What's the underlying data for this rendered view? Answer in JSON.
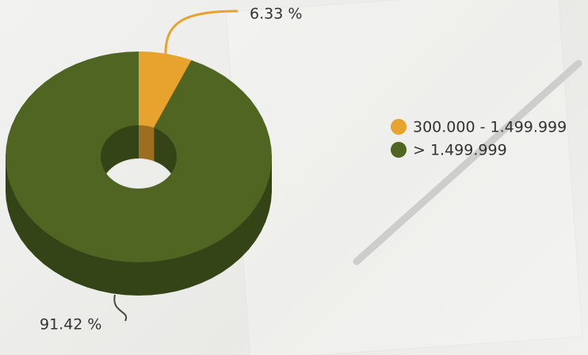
{
  "chart_data": {
    "type": "pie",
    "donut": true,
    "three_d": true,
    "categories": [
      "300.000 - 1.499.999",
      "> 1.499.999"
    ],
    "values": [
      6.33,
      91.42
    ],
    "value_labels": [
      "6.33 %",
      "91.42 %"
    ],
    "colors": [
      "#e8a22e",
      "#4f6521"
    ],
    "legend": "right"
  }
}
